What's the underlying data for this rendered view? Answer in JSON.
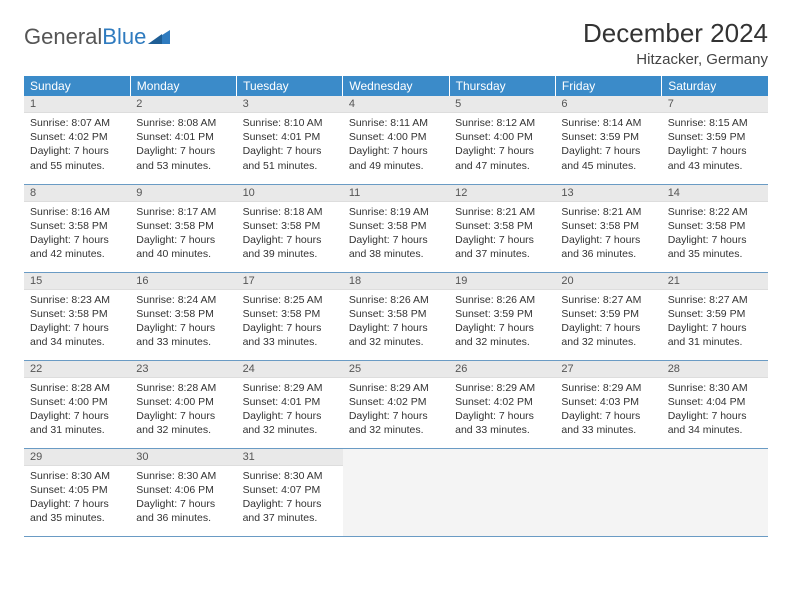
{
  "logo": {
    "text1": "General",
    "text2": "Blue"
  },
  "title": "December 2024",
  "location": "Hitzacker, Germany",
  "colors": {
    "header_bg": "#3b8bc9",
    "header_text": "#ffffff",
    "daynum_bg": "#e9e9e9",
    "row_border": "#6a9bc4",
    "logo_blue": "#2f7bbf"
  },
  "weekdays": [
    "Sunday",
    "Monday",
    "Tuesday",
    "Wednesday",
    "Thursday",
    "Friday",
    "Saturday"
  ],
  "days": [
    {
      "n": "1",
      "sr": "8:07 AM",
      "ss": "4:02 PM",
      "dl": "7 hours and 55 minutes."
    },
    {
      "n": "2",
      "sr": "8:08 AM",
      "ss": "4:01 PM",
      "dl": "7 hours and 53 minutes."
    },
    {
      "n": "3",
      "sr": "8:10 AM",
      "ss": "4:01 PM",
      "dl": "7 hours and 51 minutes."
    },
    {
      "n": "4",
      "sr": "8:11 AM",
      "ss": "4:00 PM",
      "dl": "7 hours and 49 minutes."
    },
    {
      "n": "5",
      "sr": "8:12 AM",
      "ss": "4:00 PM",
      "dl": "7 hours and 47 minutes."
    },
    {
      "n": "6",
      "sr": "8:14 AM",
      "ss": "3:59 PM",
      "dl": "7 hours and 45 minutes."
    },
    {
      "n": "7",
      "sr": "8:15 AM",
      "ss": "3:59 PM",
      "dl": "7 hours and 43 minutes."
    },
    {
      "n": "8",
      "sr": "8:16 AM",
      "ss": "3:58 PM",
      "dl": "7 hours and 42 minutes."
    },
    {
      "n": "9",
      "sr": "8:17 AM",
      "ss": "3:58 PM",
      "dl": "7 hours and 40 minutes."
    },
    {
      "n": "10",
      "sr": "8:18 AM",
      "ss": "3:58 PM",
      "dl": "7 hours and 39 minutes."
    },
    {
      "n": "11",
      "sr": "8:19 AM",
      "ss": "3:58 PM",
      "dl": "7 hours and 38 minutes."
    },
    {
      "n": "12",
      "sr": "8:21 AM",
      "ss": "3:58 PM",
      "dl": "7 hours and 37 minutes."
    },
    {
      "n": "13",
      "sr": "8:21 AM",
      "ss": "3:58 PM",
      "dl": "7 hours and 36 minutes."
    },
    {
      "n": "14",
      "sr": "8:22 AM",
      "ss": "3:58 PM",
      "dl": "7 hours and 35 minutes."
    },
    {
      "n": "15",
      "sr": "8:23 AM",
      "ss": "3:58 PM",
      "dl": "7 hours and 34 minutes."
    },
    {
      "n": "16",
      "sr": "8:24 AM",
      "ss": "3:58 PM",
      "dl": "7 hours and 33 minutes."
    },
    {
      "n": "17",
      "sr": "8:25 AM",
      "ss": "3:58 PM",
      "dl": "7 hours and 33 minutes."
    },
    {
      "n": "18",
      "sr": "8:26 AM",
      "ss": "3:58 PM",
      "dl": "7 hours and 32 minutes."
    },
    {
      "n": "19",
      "sr": "8:26 AM",
      "ss": "3:59 PM",
      "dl": "7 hours and 32 minutes."
    },
    {
      "n": "20",
      "sr": "8:27 AM",
      "ss": "3:59 PM",
      "dl": "7 hours and 32 minutes."
    },
    {
      "n": "21",
      "sr": "8:27 AM",
      "ss": "3:59 PM",
      "dl": "7 hours and 31 minutes."
    },
    {
      "n": "22",
      "sr": "8:28 AM",
      "ss": "4:00 PM",
      "dl": "7 hours and 31 minutes."
    },
    {
      "n": "23",
      "sr": "8:28 AM",
      "ss": "4:00 PM",
      "dl": "7 hours and 32 minutes."
    },
    {
      "n": "24",
      "sr": "8:29 AM",
      "ss": "4:01 PM",
      "dl": "7 hours and 32 minutes."
    },
    {
      "n": "25",
      "sr": "8:29 AM",
      "ss": "4:02 PM",
      "dl": "7 hours and 32 minutes."
    },
    {
      "n": "26",
      "sr": "8:29 AM",
      "ss": "4:02 PM",
      "dl": "7 hours and 33 minutes."
    },
    {
      "n": "27",
      "sr": "8:29 AM",
      "ss": "4:03 PM",
      "dl": "7 hours and 33 minutes."
    },
    {
      "n": "28",
      "sr": "8:30 AM",
      "ss": "4:04 PM",
      "dl": "7 hours and 34 minutes."
    },
    {
      "n": "29",
      "sr": "8:30 AM",
      "ss": "4:05 PM",
      "dl": "7 hours and 35 minutes."
    },
    {
      "n": "30",
      "sr": "8:30 AM",
      "ss": "4:06 PM",
      "dl": "7 hours and 36 minutes."
    },
    {
      "n": "31",
      "sr": "8:30 AM",
      "ss": "4:07 PM",
      "dl": "7 hours and 37 minutes."
    }
  ],
  "labels": {
    "sunrise": "Sunrise:",
    "sunset": "Sunset:",
    "daylight": "Daylight:"
  },
  "layout": {
    "start_weekday": 0,
    "total_cells": 35
  }
}
